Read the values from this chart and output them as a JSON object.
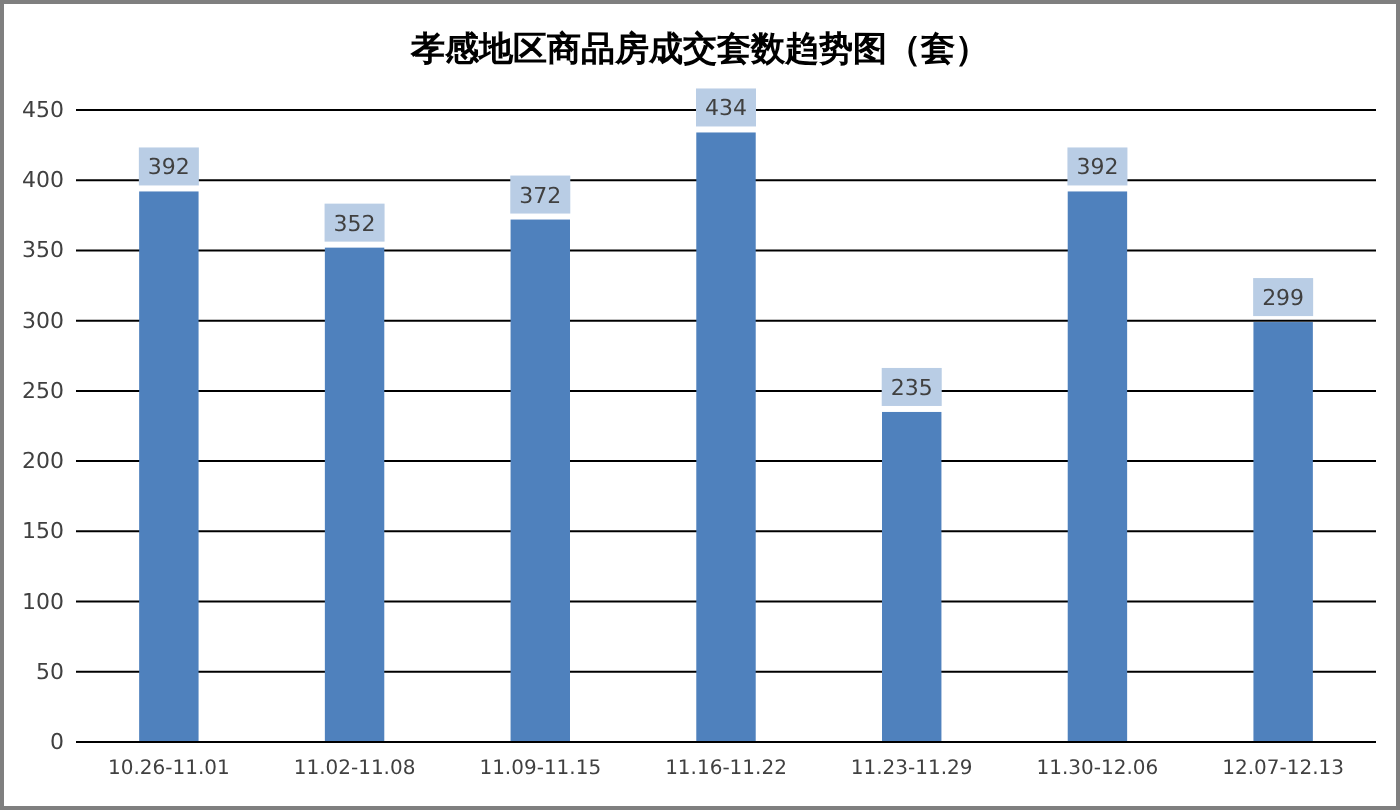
{
  "chart_data": {
    "type": "bar",
    "title": "孝感地区商品房成交套数趋势图（套）",
    "categories": [
      "10.26-11.01",
      "11.02-11.08",
      "11.09-11.15",
      "11.16-11.22",
      "11.23-11.29",
      "11.30-12.06",
      "12.07-12.13"
    ],
    "values": [
      392,
      352,
      372,
      434,
      235,
      392,
      299
    ],
    "color": "#4f81bd",
    "ylim": [
      0,
      450
    ],
    "yticks": [
      0,
      50,
      100,
      150,
      200,
      250,
      300,
      350,
      400,
      450
    ],
    "grid": "y",
    "data_labels": true
  }
}
